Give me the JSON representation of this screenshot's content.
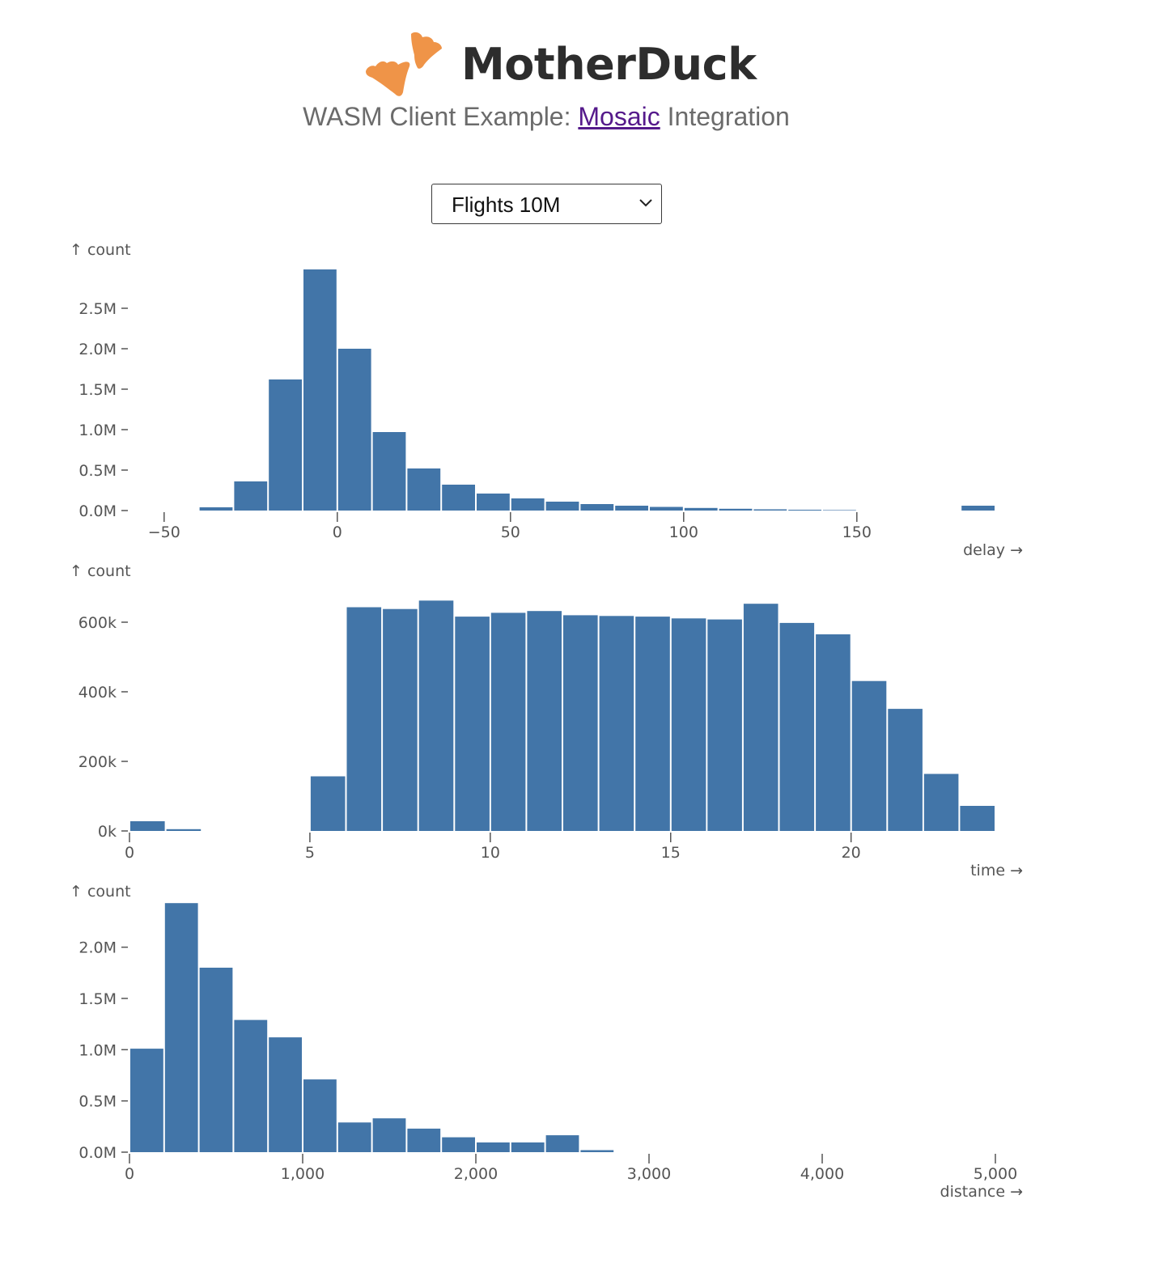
{
  "header": {
    "brand": "MotherDuck",
    "subtitle_prefix": "WASM Client Example: ",
    "subtitle_link": "Mosaic",
    "subtitle_suffix": " Integration",
    "logo_color": "#ef9448"
  },
  "dataset_select": {
    "value": "Flights 10M"
  },
  "colors": {
    "bar": "#4275a8",
    "axis": "#555555"
  },
  "chart_data": [
    {
      "type": "bar",
      "xlabel": "delay →",
      "ylabel": "↑ count",
      "xlim": [
        -60,
        190
      ],
      "ylim": [
        0,
        3000000
      ],
      "xticks": [
        -50,
        0,
        50,
        100,
        150
      ],
      "xtick_labels": [
        "−50",
        "0",
        "50",
        "100",
        "150"
      ],
      "yticks": [
        0,
        500000,
        1000000,
        1500000,
        2000000,
        2500000
      ],
      "ytick_labels": [
        "0.0M",
        "0.5M",
        "1.0M",
        "1.5M",
        "2.0M",
        "2.5M"
      ],
      "grid": false,
      "bins": [
        {
          "x0": -40,
          "x1": -30,
          "count": 40000
        },
        {
          "x0": -30,
          "x1": -20,
          "count": 360000
        },
        {
          "x0": -20,
          "x1": -10,
          "count": 1620000
        },
        {
          "x0": -10,
          "x1": 0,
          "count": 2980000
        },
        {
          "x0": 0,
          "x1": 10,
          "count": 2000000
        },
        {
          "x0": 10,
          "x1": 20,
          "count": 970000
        },
        {
          "x0": 20,
          "x1": 30,
          "count": 520000
        },
        {
          "x0": 30,
          "x1": 40,
          "count": 320000
        },
        {
          "x0": 40,
          "x1": 50,
          "count": 210000
        },
        {
          "x0": 50,
          "x1": 60,
          "count": 150000
        },
        {
          "x0": 60,
          "x1": 70,
          "count": 110000
        },
        {
          "x0": 70,
          "x1": 80,
          "count": 80000
        },
        {
          "x0": 80,
          "x1": 90,
          "count": 60000
        },
        {
          "x0": 90,
          "x1": 100,
          "count": 45000
        },
        {
          "x0": 100,
          "x1": 110,
          "count": 32000
        },
        {
          "x0": 110,
          "x1": 120,
          "count": 22000
        },
        {
          "x0": 120,
          "x1": 130,
          "count": 15000
        },
        {
          "x0": 130,
          "x1": 140,
          "count": 10000
        },
        {
          "x0": 140,
          "x1": 150,
          "count": 6000
        },
        {
          "x0": 180,
          "x1": 190,
          "count": 60000
        }
      ]
    },
    {
      "type": "bar",
      "xlabel": "time →",
      "ylabel": "↑ count",
      "xlim": [
        0,
        24
      ],
      "ylim": [
        0,
        700000
      ],
      "xticks": [
        0,
        5,
        10,
        15,
        20
      ],
      "xtick_labels": [
        "0",
        "5",
        "10",
        "15",
        "20"
      ],
      "yticks": [
        0,
        200000,
        400000,
        600000
      ],
      "ytick_labels": [
        "0k",
        "200k",
        "400k",
        "600k"
      ],
      "grid": false,
      "bins": [
        {
          "x0": 0,
          "x1": 1,
          "count": 28000
        },
        {
          "x0": 1,
          "x1": 2,
          "count": 5000
        },
        {
          "x0": 5,
          "x1": 6,
          "count": 157000
        },
        {
          "x0": 6,
          "x1": 7,
          "count": 643000
        },
        {
          "x0": 7,
          "x1": 8,
          "count": 638000
        },
        {
          "x0": 8,
          "x1": 9,
          "count": 662000
        },
        {
          "x0": 9,
          "x1": 10,
          "count": 616000
        },
        {
          "x0": 10,
          "x1": 11,
          "count": 627000
        },
        {
          "x0": 11,
          "x1": 12,
          "count": 632000
        },
        {
          "x0": 12,
          "x1": 13,
          "count": 620000
        },
        {
          "x0": 13,
          "x1": 14,
          "count": 618000
        },
        {
          "x0": 14,
          "x1": 15,
          "count": 616000
        },
        {
          "x0": 15,
          "x1": 16,
          "count": 611000
        },
        {
          "x0": 16,
          "x1": 17,
          "count": 608000
        },
        {
          "x0": 17,
          "x1": 18,
          "count": 653000
        },
        {
          "x0": 18,
          "x1": 19,
          "count": 598000
        },
        {
          "x0": 19,
          "x1": 20,
          "count": 565000
        },
        {
          "x0": 20,
          "x1": 21,
          "count": 431000
        },
        {
          "x0": 21,
          "x1": 22,
          "count": 351000
        },
        {
          "x0": 22,
          "x1": 23,
          "count": 164000
        },
        {
          "x0": 23,
          "x1": 24,
          "count": 72000
        }
      ]
    },
    {
      "type": "bar",
      "xlabel": "distance →",
      "ylabel": "↑ count",
      "xlim": [
        0,
        5000
      ],
      "ylim": [
        0,
        2400000
      ],
      "xticks": [
        0,
        1000,
        2000,
        3000,
        4000,
        5000
      ],
      "xtick_labels": [
        "0",
        "1,000",
        "2,000",
        "3,000",
        "4,000",
        "5,000"
      ],
      "yticks": [
        0,
        500000,
        1000000,
        1500000,
        2000000
      ],
      "ytick_labels": [
        "0.0M",
        "0.5M",
        "1.0M",
        "1.5M",
        "2.0M"
      ],
      "grid": false,
      "bins": [
        {
          "x0": 0,
          "x1": 200,
          "count": 1010000
        },
        {
          "x0": 200,
          "x1": 400,
          "count": 2430000
        },
        {
          "x0": 400,
          "x1": 600,
          "count": 1800000
        },
        {
          "x0": 600,
          "x1": 800,
          "count": 1290000
        },
        {
          "x0": 800,
          "x1": 1000,
          "count": 1120000
        },
        {
          "x0": 1000,
          "x1": 1200,
          "count": 710000
        },
        {
          "x0": 1200,
          "x1": 1400,
          "count": 290000
        },
        {
          "x0": 1400,
          "x1": 1600,
          "count": 330000
        },
        {
          "x0": 1600,
          "x1": 1800,
          "count": 230000
        },
        {
          "x0": 1800,
          "x1": 2000,
          "count": 145000
        },
        {
          "x0": 2000,
          "x1": 2200,
          "count": 95000
        },
        {
          "x0": 2200,
          "x1": 2400,
          "count": 95000
        },
        {
          "x0": 2400,
          "x1": 2600,
          "count": 165000
        },
        {
          "x0": 2600,
          "x1": 2800,
          "count": 20000
        }
      ]
    }
  ]
}
